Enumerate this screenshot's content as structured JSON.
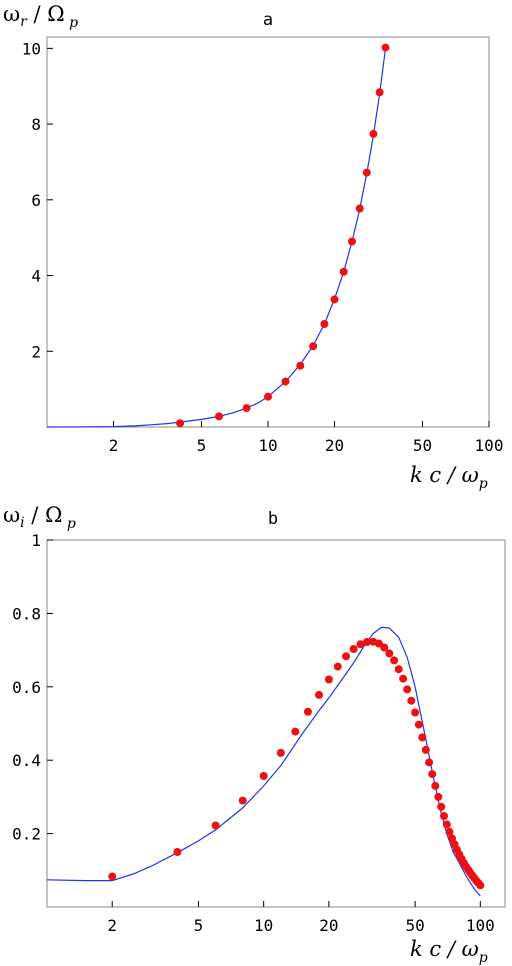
{
  "chart_data": [
    {
      "type": "line",
      "title": "a",
      "xlabel": {
        "main": "k c / ω",
        "sub": "p"
      },
      "ylabel": {
        "main": "ω",
        "sub": "r",
        "tail": " / Ω",
        "tailsub": " p"
      },
      "xscale": "log",
      "xlim": [
        1,
        100
      ],
      "ylim": [
        0,
        10.3
      ],
      "xticks": [
        2,
        5,
        10,
        20,
        50,
        100
      ],
      "xtick_labels": [
        "2",
        "5",
        "10",
        "20",
        "50",
        "100"
      ],
      "yticks": [
        2,
        4,
        6,
        8,
        10
      ],
      "ytick_labels": [
        "2",
        "4",
        "6",
        "8",
        "10"
      ],
      "grid": false,
      "colors": {
        "curve": "#2233ee",
        "points": "#ee1111",
        "frame": "#888888"
      },
      "series": [
        {
          "kind": "curve",
          "x": [
            1.0,
            1.5,
            2.0,
            2.5,
            3.0,
            3.5,
            4.0,
            5.0,
            6.0,
            7.0,
            8.0,
            9.0,
            10.0,
            12.0,
            14.0,
            16.0,
            18.0,
            20.0,
            22.0,
            24.0,
            26.0,
            28.0,
            30.0,
            32.0,
            34.0
          ],
          "y": [
            0.0,
            0.005,
            0.01,
            0.03,
            0.06,
            0.09,
            0.13,
            0.2,
            0.28,
            0.38,
            0.5,
            0.63,
            0.8,
            1.2,
            1.65,
            2.15,
            2.72,
            3.38,
            4.1,
            4.9,
            5.75,
            6.7,
            7.7,
            8.8,
            10.0
          ]
        },
        {
          "kind": "points",
          "x": [
            4,
            6,
            8,
            10,
            12,
            14,
            16,
            18,
            20,
            22,
            24,
            26,
            28,
            30,
            32,
            34
          ],
          "y": [
            0.1,
            0.28,
            0.5,
            0.8,
            1.2,
            1.62,
            2.13,
            2.72,
            3.37,
            4.1,
            4.9,
            5.77,
            6.72,
            7.74,
            8.84,
            10.02
          ]
        }
      ]
    },
    {
      "type": "line",
      "title": "b",
      "xlabel": {
        "main": "k c / ω",
        "sub": "p"
      },
      "ylabel": {
        "main": "ω",
        "sub": "i",
        "tail": " / Ω",
        "tailsub": " p"
      },
      "xscale": "log",
      "xlim": [
        1,
        130
      ],
      "ylim": [
        0.0,
        1.0
      ],
      "xticks": [
        2,
        5,
        10,
        20,
        50,
        100
      ],
      "xtick_labels": [
        "2",
        "5",
        "10",
        "20",
        "50",
        "100"
      ],
      "yticks": [
        0.2,
        0.4,
        0.6,
        0.8,
        1.0
      ],
      "ytick_labels": [
        "0.2",
        "0.4",
        "0.6",
        "0.8",
        "1"
      ],
      "grid": false,
      "colors": {
        "curve": "#2233ee",
        "points": "#ee1111",
        "frame": "#888888"
      },
      "series": [
        {
          "kind": "curve",
          "x": [
            1.0,
            1.5,
            2.0,
            2.5,
            3.0,
            4.0,
            5.0,
            6.0,
            8.0,
            10.0,
            12.0,
            15.0,
            18.0,
            20.0,
            23.0,
            26.0,
            29.0,
            32.0,
            35.0,
            38.0,
            42.0,
            46.0,
            50.0,
            55.0,
            60.0,
            65.0,
            70.0,
            75.0,
            80.0,
            85.0,
            90.0,
            95.0,
            100.0
          ],
          "y": [
            0.074,
            0.072,
            0.072,
            0.09,
            0.11,
            0.148,
            0.18,
            0.21,
            0.27,
            0.33,
            0.385,
            0.47,
            0.535,
            0.57,
            0.62,
            0.665,
            0.71,
            0.745,
            0.762,
            0.76,
            0.735,
            0.68,
            0.6,
            0.48,
            0.37,
            0.27,
            0.2,
            0.15,
            0.12,
            0.09,
            0.065,
            0.045,
            0.03
          ]
        },
        {
          "kind": "points",
          "x": [
            2,
            4,
            6,
            8,
            10,
            12,
            14,
            16,
            18,
            20,
            22,
            24,
            26,
            28,
            30,
            32,
            34,
            36,
            38,
            40,
            42,
            44,
            46,
            48,
            50,
            52,
            54,
            56,
            58,
            60,
            62,
            64,
            66,
            68,
            70,
            72,
            74,
            76,
            78,
            80,
            82,
            84,
            86,
            88,
            90,
            92,
            94,
            96,
            98,
            100
          ],
          "y": [
            0.083,
            0.15,
            0.222,
            0.29,
            0.357,
            0.42,
            0.478,
            0.532,
            0.578,
            0.62,
            0.655,
            0.683,
            0.703,
            0.716,
            0.722,
            0.723,
            0.718,
            0.707,
            0.691,
            0.672,
            0.648,
            0.622,
            0.593,
            0.562,
            0.53,
            0.497,
            0.462,
            0.428,
            0.394,
            0.362,
            0.33,
            0.3,
            0.273,
            0.248,
            0.225,
            0.205,
            0.187,
            0.171,
            0.156,
            0.143,
            0.131,
            0.12,
            0.11,
            0.101,
            0.093,
            0.085,
            0.078,
            0.071,
            0.065,
            0.059
          ]
        }
      ]
    }
  ]
}
